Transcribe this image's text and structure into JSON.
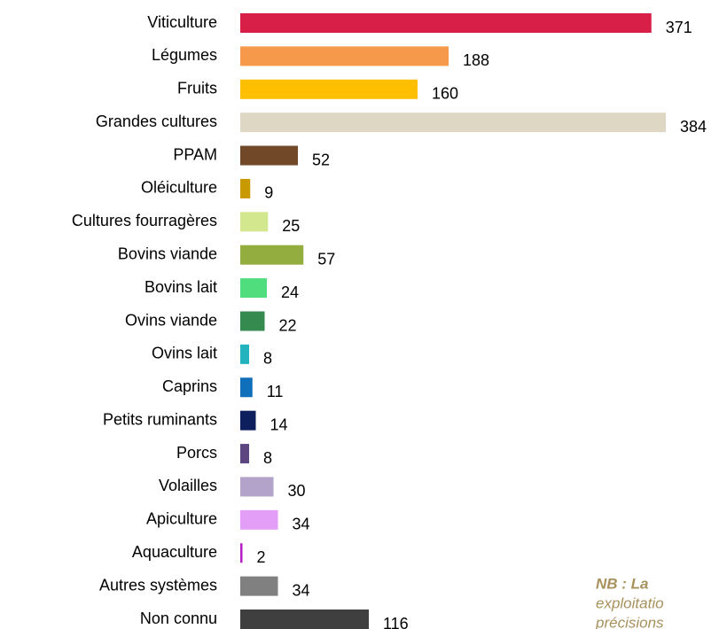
{
  "chart_data": {
    "type": "bar",
    "orientation": "horizontal",
    "categories": [
      "Viticulture",
      "Légumes",
      "Fruits",
      "Grandes cultures",
      "PPAM",
      "Oléiculture",
      "Cultures fourragères",
      "Bovins viande",
      "Bovins lait",
      "Ovins viande",
      "Ovins lait",
      "Caprins",
      "Petits ruminants",
      "Porcs",
      "Volailles",
      "Apiculture",
      "Aquaculture",
      "Autres systèmes",
      "Non connu"
    ],
    "values": [
      371,
      188,
      160,
      384,
      52,
      9,
      25,
      57,
      24,
      22,
      8,
      11,
      14,
      8,
      30,
      34,
      2,
      34,
      116
    ],
    "colors": [
      "#d71f48",
      "#f7994a",
      "#fdbf00",
      "#ded7c3",
      "#714828",
      "#c99900",
      "#d3e78f",
      "#94ad3f",
      "#4fdd7d",
      "#358a4f",
      "#22b3bf",
      "#0f6fba",
      "#0e1f5e",
      "#5d4581",
      "#b3a2c9",
      "#e39ef7",
      "#b620c7",
      "#808080",
      "#3f3f3f"
    ],
    "annotations": [
      "NB : La",
      "exploitatio",
      "précisions"
    ]
  }
}
